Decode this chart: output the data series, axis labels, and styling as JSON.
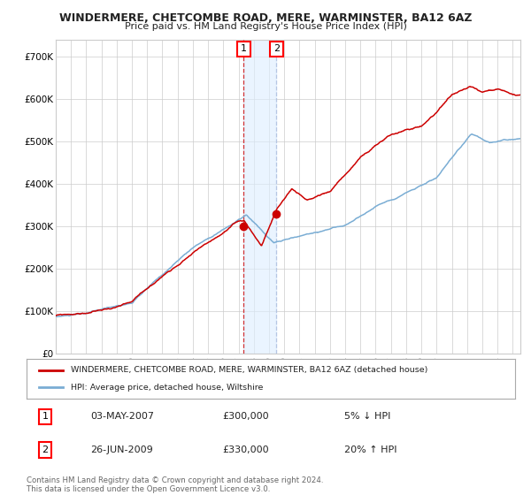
{
  "title": "WINDERMERE, CHETCOMBE ROAD, MERE, WARMINSTER, BA12 6AZ",
  "subtitle": "Price paid vs. HM Land Registry's House Price Index (HPI)",
  "ylabel_ticks": [
    "£0",
    "£100K",
    "£200K",
    "£300K",
    "£400K",
    "£500K",
    "£600K",
    "£700K"
  ],
  "ytick_vals": [
    0,
    100000,
    200000,
    300000,
    400000,
    500000,
    600000,
    700000
  ],
  "ylim": [
    0,
    740000
  ],
  "xlim_start": 1995.0,
  "xlim_end": 2025.5,
  "sale1_date": 2007.33,
  "sale1_price": 300000,
  "sale2_date": 2009.48,
  "sale2_price": 330000,
  "red_line_color": "#cc0000",
  "blue_line_color": "#7aadd4",
  "legend_red": "WINDERMERE, CHETCOMBE ROAD, MERE, WARMINSTER, BA12 6AZ (detached house)",
  "legend_blue": "HPI: Average price, detached house, Wiltshire",
  "table_row1": [
    "1",
    "03-MAY-2007",
    "£300,000",
    "5% ↓ HPI"
  ],
  "table_row2": [
    "2",
    "26-JUN-2009",
    "£330,000",
    "20% ↑ HPI"
  ],
  "footnote": "Contains HM Land Registry data © Crown copyright and database right 2024.\nThis data is licensed under the Open Government Licence v3.0.",
  "bg_color": "#ffffff",
  "grid_color": "#cccccc",
  "shade_color": "#ddeeff"
}
